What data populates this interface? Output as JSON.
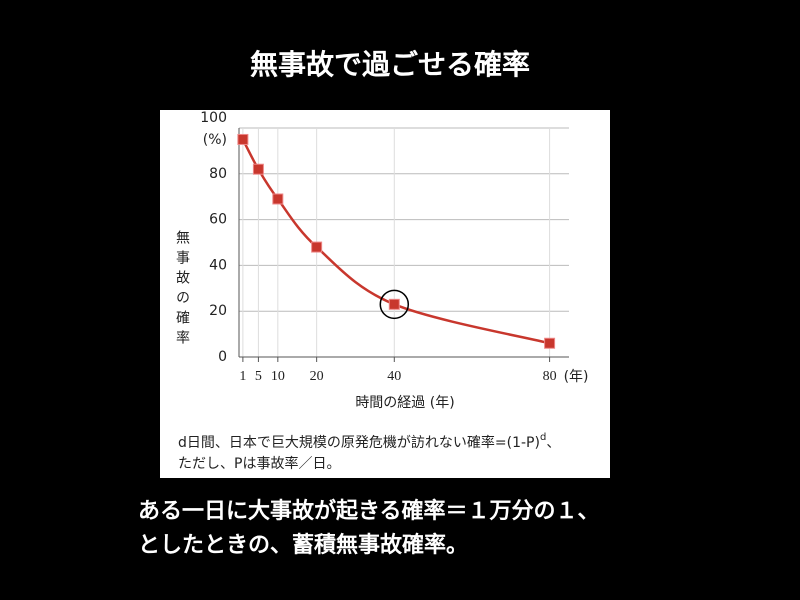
{
  "slide_title": "無事故で過ごせる確率",
  "chart_data": {
    "type": "line",
    "x": [
      1,
      5,
      10,
      20,
      40,
      80
    ],
    "series": [
      {
        "name": "無事故の確率",
        "color": "#c8372d",
        "values": [
          95,
          82,
          69,
          48,
          23,
          6
        ]
      }
    ],
    "xlim": [
      0,
      85
    ],
    "xticks": [
      1,
      5,
      10,
      20,
      40,
      80
    ],
    "x_unit": "(年)",
    "ylim": [
      0,
      100
    ],
    "yticks": [
      0,
      20,
      40,
      60,
      80,
      100
    ],
    "y_unit": "(%)",
    "ylabel": "無事故の確率",
    "xlabel": "時間の経過 (年)",
    "grid": true,
    "note": {
      "line1": "d日間、日本で巨大規模の原発危機が訪れない確率=(1-P)",
      "sup": "d",
      "line1_end": "、",
      "line2": "ただし、Pは事故率／日。"
    }
  },
  "caption": [
    "ある一日に大事故が起きる確率＝１万分の１、",
    "としたときの、蓄積無事故確率。"
  ]
}
